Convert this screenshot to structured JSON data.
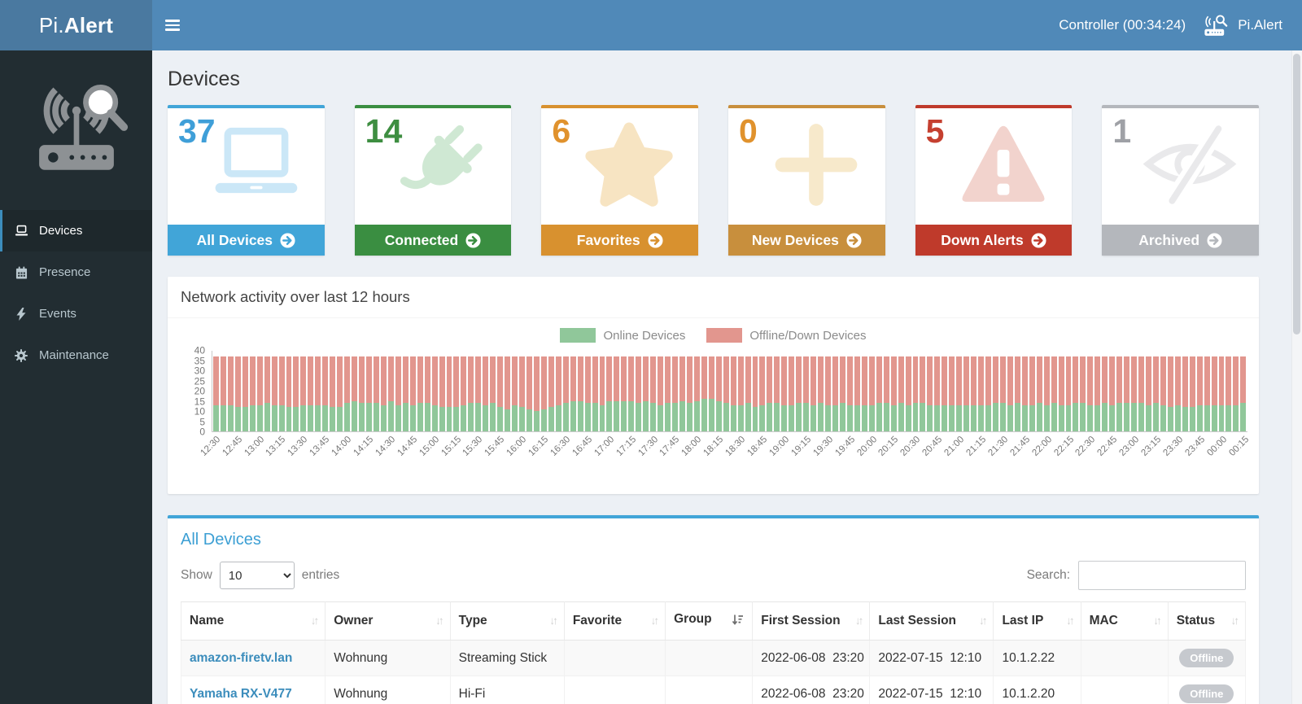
{
  "ui_colors": {
    "navbar_bg": "#5089b8",
    "logo_bg": "#4a79a0",
    "sidebar_bg": "#222d32",
    "sidebar_active_bg": "#1e282c",
    "sidebar_text": "#b8c7ce",
    "accent_blue": "#3c8dbc",
    "content_bg": "#ecf0f5",
    "link": "#3c8dbc",
    "badge_gray": "#c6c9ce",
    "legend_text": "#8b8b8b",
    "axis_text": "#777777"
  },
  "topbar": {
    "logo_prefix": "Pi.",
    "logo_bold": "Alert",
    "controller_status": "Controller (00:34:24)",
    "brand": "Pi.Alert"
  },
  "sidebar": {
    "items": [
      {
        "label": "Devices",
        "icon": "laptop-icon",
        "active": true
      },
      {
        "label": "Presence",
        "icon": "calendar-icon",
        "active": false
      },
      {
        "label": "Events",
        "icon": "bolt-icon",
        "active": false
      },
      {
        "label": "Maintenance",
        "icon": "gear-icon",
        "active": false
      }
    ]
  },
  "page": {
    "title": "Devices"
  },
  "cards": [
    {
      "count": "37",
      "label": "All Devices",
      "color": "#41a5d8",
      "count_color": "#3f9fd8",
      "icon_color": "#cbe7f7",
      "icon": "laptop-icon"
    },
    {
      "count": "14",
      "label": "Connected",
      "color": "#3a8e41",
      "count_color": "#3e8e41",
      "icon_color": "#cfe8d3",
      "icon": "plug-icon"
    },
    {
      "count": "6",
      "label": "Favorites",
      "color": "#d8912f",
      "count_color": "#e0922d",
      "icon_color": "#f7e4c2",
      "icon": "star-icon"
    },
    {
      "count": "0",
      "label": "New Devices",
      "color": "#c88f3d",
      "count_color": "#e0922d",
      "icon_color": "#f7e9cb",
      "icon": "plus-icon"
    },
    {
      "count": "5",
      "label": "Down Alerts",
      "color": "#bf3a2b",
      "count_color": "#c54030",
      "icon_color": "#f2d3cd",
      "icon": "warning-icon"
    },
    {
      "count": "1",
      "label": "Archived",
      "color": "#b4b7bc",
      "count_color": "#9fa1a6",
      "icon_color": "#e9e9eb",
      "icon": "eye-slash-icon"
    }
  ],
  "chart_panel": {
    "title": "Network activity over last 12 hours"
  },
  "chart_data": {
    "type": "bar",
    "stacked": true,
    "title": "Network activity over last 12 hours",
    "legend_position": "top",
    "grid": false,
    "ylim": [
      0,
      40
    ],
    "y_ticks": [
      40,
      35,
      30,
      25,
      20,
      15,
      10,
      5,
      0
    ],
    "x_interval_minutes": 5,
    "x_tick_labels": [
      "12:30",
      "12:45",
      "13:00",
      "13:15",
      "13:30",
      "13:45",
      "14:00",
      "14:15",
      "14:30",
      "14:45",
      "15:00",
      "15:15",
      "15:30",
      "15:45",
      "16:00",
      "16:15",
      "16:30",
      "16:45",
      "17:00",
      "17:15",
      "17:30",
      "17:45",
      "18:00",
      "18:15",
      "18:30",
      "18:45",
      "19:00",
      "19:15",
      "19:30",
      "19:45",
      "20:00",
      "20:15",
      "20:30",
      "20:45",
      "21:00",
      "21:15",
      "21:30",
      "21:45",
      "22:00",
      "22:15",
      "22:30",
      "22:45",
      "23:00",
      "23:15",
      "23:30",
      "23:45",
      "00:00",
      "00:15"
    ],
    "series": [
      {
        "name": "Online Devices",
        "color": "#90c79a",
        "values": [
          13,
          13,
          13,
          12,
          12,
          13,
          13,
          14,
          13,
          13,
          12,
          12,
          13,
          13,
          13,
          13,
          12,
          12,
          14,
          15,
          14,
          14,
          14,
          13,
          15,
          13,
          14,
          13,
          14,
          14,
          13,
          12,
          12,
          12,
          13,
          14,
          14,
          13,
          14,
          12,
          11,
          13,
          12,
          11,
          10,
          11,
          12,
          13,
          14,
          15,
          15,
          14,
          14,
          13,
          15,
          15,
          15,
          15,
          14,
          15,
          14,
          13,
          14,
          14,
          15,
          14,
          15,
          16,
          16,
          15,
          14,
          13,
          13,
          14,
          12,
          13,
          14,
          14,
          13,
          13,
          14,
          14,
          13,
          14,
          13,
          13,
          14,
          13,
          13,
          13,
          13,
          14,
          14,
          13,
          14,
          13,
          14,
          14,
          13,
          13,
          13,
          13,
          13,
          13,
          13,
          13,
          13,
          14,
          14,
          13,
          14,
          13,
          13,
          14,
          13,
          14,
          13,
          13,
          14,
          14,
          13,
          13,
          14,
          13,
          14,
          14,
          14,
          14,
          13,
          14,
          13,
          12,
          13,
          12,
          12,
          13,
          13,
          13,
          13,
          13,
          13,
          14
        ]
      },
      {
        "name": "Offline/Down Devices",
        "color": "#e2968e",
        "values": [
          24,
          24,
          24,
          25,
          25,
          24,
          24,
          23,
          24,
          24,
          25,
          25,
          24,
          24,
          24,
          24,
          25,
          25,
          23,
          22,
          23,
          23,
          23,
          24,
          22,
          24,
          23,
          24,
          23,
          23,
          24,
          25,
          25,
          25,
          24,
          23,
          23,
          24,
          23,
          25,
          26,
          24,
          25,
          26,
          27,
          26,
          25,
          24,
          23,
          22,
          22,
          23,
          23,
          24,
          22,
          22,
          22,
          22,
          23,
          22,
          23,
          24,
          23,
          23,
          22,
          23,
          22,
          21,
          21,
          22,
          23,
          24,
          24,
          23,
          25,
          24,
          23,
          23,
          24,
          24,
          23,
          23,
          24,
          23,
          24,
          24,
          23,
          24,
          24,
          24,
          24,
          23,
          23,
          24,
          23,
          24,
          23,
          23,
          24,
          24,
          24,
          24,
          24,
          24,
          24,
          24,
          24,
          23,
          23,
          24,
          23,
          24,
          24,
          23,
          24,
          23,
          24,
          24,
          23,
          23,
          24,
          24,
          23,
          24,
          23,
          23,
          23,
          23,
          24,
          23,
          24,
          25,
          24,
          25,
          25,
          24,
          24,
          24,
          24,
          24,
          24,
          23
        ]
      }
    ]
  },
  "table_panel": {
    "title": "All Devices",
    "show_label": "Show",
    "page_size": "10",
    "entries_label": "entries",
    "search_label": "Search:",
    "search_value": "",
    "columns": [
      {
        "label": "Name",
        "sorted": "none"
      },
      {
        "label": "Owner",
        "sorted": "none"
      },
      {
        "label": "Type",
        "sorted": "none"
      },
      {
        "label": "Favorite",
        "sorted": "none"
      },
      {
        "label": "Group",
        "sorted": "desc"
      },
      {
        "label": "First Session",
        "sorted": "none"
      },
      {
        "label": "Last Session",
        "sorted": "none"
      },
      {
        "label": "Last IP",
        "sorted": "none"
      },
      {
        "label": "MAC",
        "sorted": "none"
      },
      {
        "label": "Status",
        "sorted": "none"
      }
    ],
    "rows": [
      {
        "name": "amazon-firetv.lan",
        "owner": "Wohnung",
        "type": "Streaming Stick",
        "favorite": "",
        "group": "",
        "first_session": "2022-06-08  23:20",
        "last_session": "2022-07-15  12:10",
        "last_ip": "10.1.2.22",
        "mac": "",
        "status": "Offline"
      },
      {
        "name": "Yamaha RX-V477",
        "owner": "Wohnung",
        "type": "Hi-Fi",
        "favorite": "",
        "group": "",
        "first_session": "2022-06-08  23:20",
        "last_session": "2022-07-15  12:10",
        "last_ip": "10.1.2.20",
        "mac": "",
        "status": "Offline"
      }
    ]
  }
}
